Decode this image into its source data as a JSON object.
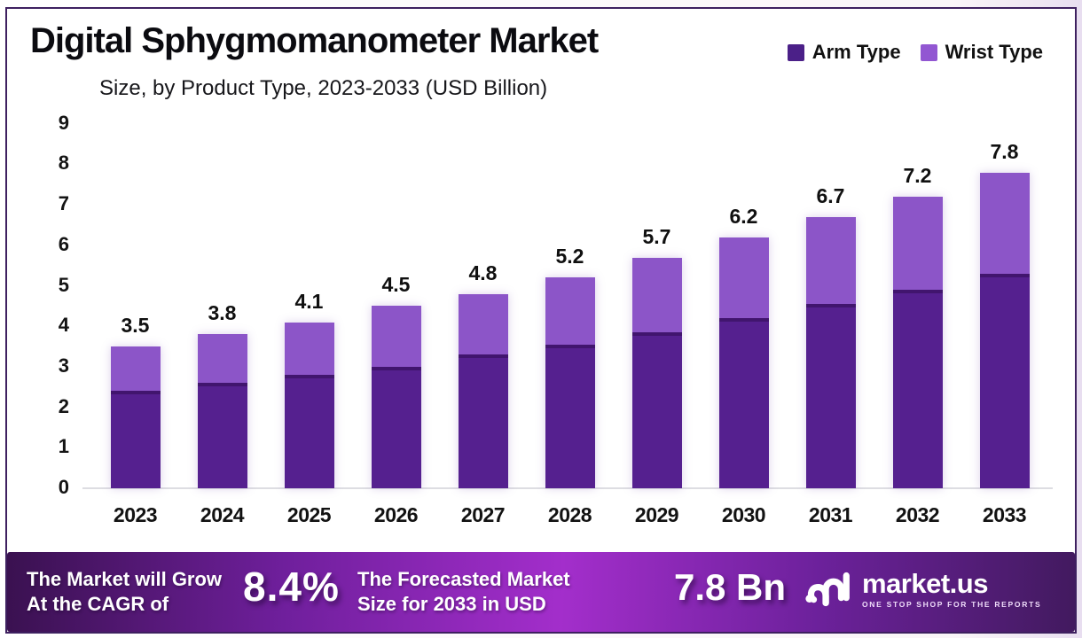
{
  "header": {
    "title": "Digital Sphygmomanometer Market",
    "subtitle": "Size, by Product Type, 2023-2033 (USD Billion)"
  },
  "legend": [
    {
      "label": "Arm Type",
      "color": "#4b2088"
    },
    {
      "label": "Wrist Type",
      "color": "#9257d2"
    }
  ],
  "chart_data": {
    "type": "bar",
    "stacked": true,
    "title": "Digital Sphygmomanometer Market Size, by Product Type, 2023-2033 (USD Billion)",
    "categories": [
      "2023",
      "2024",
      "2025",
      "2026",
      "2027",
      "2028",
      "2029",
      "2030",
      "2031",
      "2032",
      "2033"
    ],
    "series": [
      {
        "name": "Arm Type",
        "color": "#55208f",
        "values": [
          2.4,
          2.6,
          2.8,
          3.0,
          3.3,
          3.55,
          3.85,
          4.2,
          4.55,
          4.9,
          5.3
        ]
      },
      {
        "name": "Wrist Type",
        "color": "#8c55c8",
        "values": [
          1.1,
          1.2,
          1.3,
          1.5,
          1.5,
          1.65,
          1.85,
          2.0,
          2.15,
          2.3,
          2.5
        ]
      }
    ],
    "totals": [
      "3.5",
      "3.8",
      "4.1",
      "4.5",
      "4.8",
      "5.2",
      "5.7",
      "6.2",
      "6.7",
      "7.2",
      "7.8"
    ],
    "xlabel": "",
    "ylabel": "",
    "ylim": [
      0,
      9
    ],
    "y_ticks": [
      0,
      1,
      2,
      3,
      4,
      5,
      6,
      7,
      8,
      9
    ],
    "grid": false,
    "legend_position": "top-right"
  },
  "banner": {
    "cagr_label_line1": "The Market will Grow",
    "cagr_label_line2": "At the CAGR of",
    "cagr_value": "8.4%",
    "forecast_label_line1": "The Forecasted Market",
    "forecast_label_line2": "Size for 2033 in USD",
    "forecast_value": "7.8 Bn",
    "logo_text": "market.us",
    "logo_tagline": "ONE STOP SHOP FOR THE REPORTS"
  },
  "colors": {
    "arm": "#55208f",
    "arm_cap": "#41156e",
    "wrist": "#8c55c8",
    "frame_border": "#3e2060"
  }
}
